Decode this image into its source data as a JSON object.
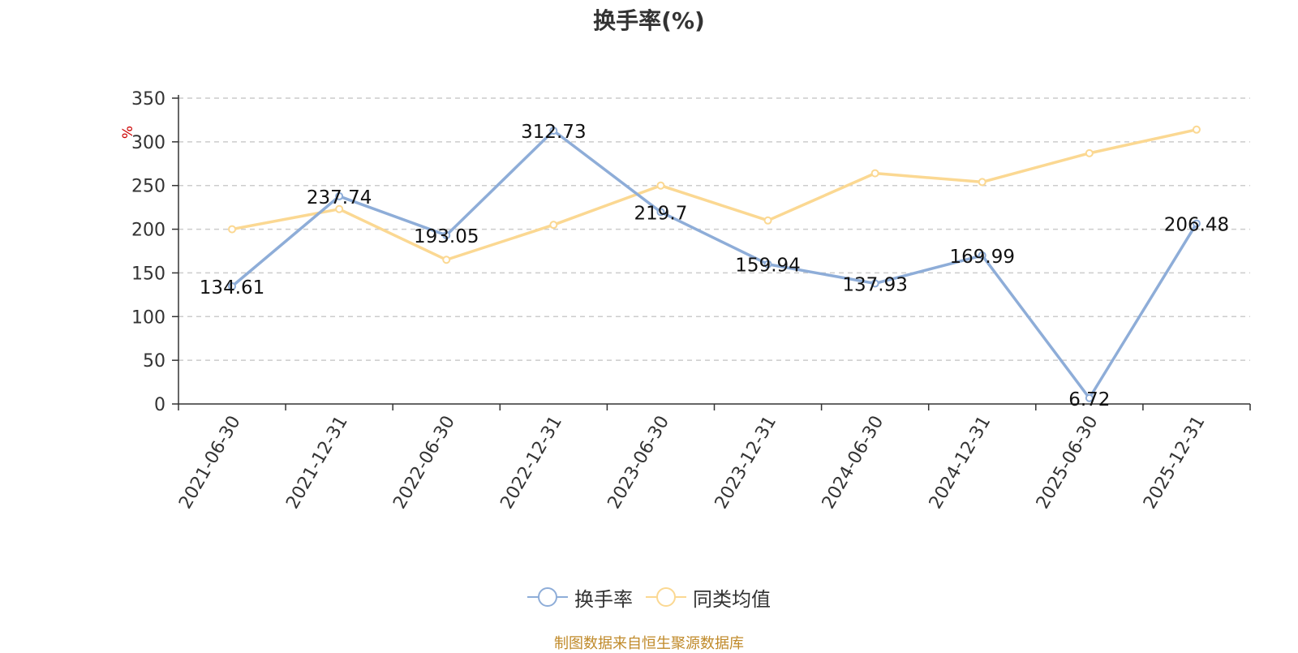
{
  "chart_data": {
    "type": "line",
    "title": "换手率(%)",
    "ylabel": "%",
    "categories": [
      "2021-06-30",
      "2021-12-31",
      "2022-06-30",
      "2022-12-31",
      "2023-06-30",
      "2023-12-31",
      "2024-06-30",
      "2024-12-31",
      "2025-06-30",
      "2025-12-31"
    ],
    "ylim": [
      0,
      350
    ],
    "yticks": [
      0,
      50,
      100,
      150,
      200,
      250,
      300,
      350
    ],
    "grid": true,
    "legend_position": "bottom",
    "series": [
      {
        "name": "换手率",
        "color": "#8eadd8",
        "labeled": true,
        "values": [
          134.61,
          237.74,
          193.05,
          312.73,
          219.7,
          159.94,
          137.93,
          169.99,
          6.72,
          206.48
        ],
        "labels": [
          "134.61",
          "237.74",
          "193.05",
          "312.73",
          "219.7",
          "159.94",
          "137.93",
          "169.99",
          "6.72",
          "206.48"
        ]
      },
      {
        "name": "同类均值",
        "color": "#fbd892",
        "labeled": false,
        "values": [
          200,
          223,
          165,
          205,
          250,
          210,
          264,
          254,
          287,
          314
        ]
      }
    ]
  },
  "source_note": "制图数据来自恒生聚源数据库",
  "colors": {
    "axis": "#333333",
    "grid": "#cccccc",
    "unit": "#cc0000",
    "source": "#c08a2a"
  }
}
